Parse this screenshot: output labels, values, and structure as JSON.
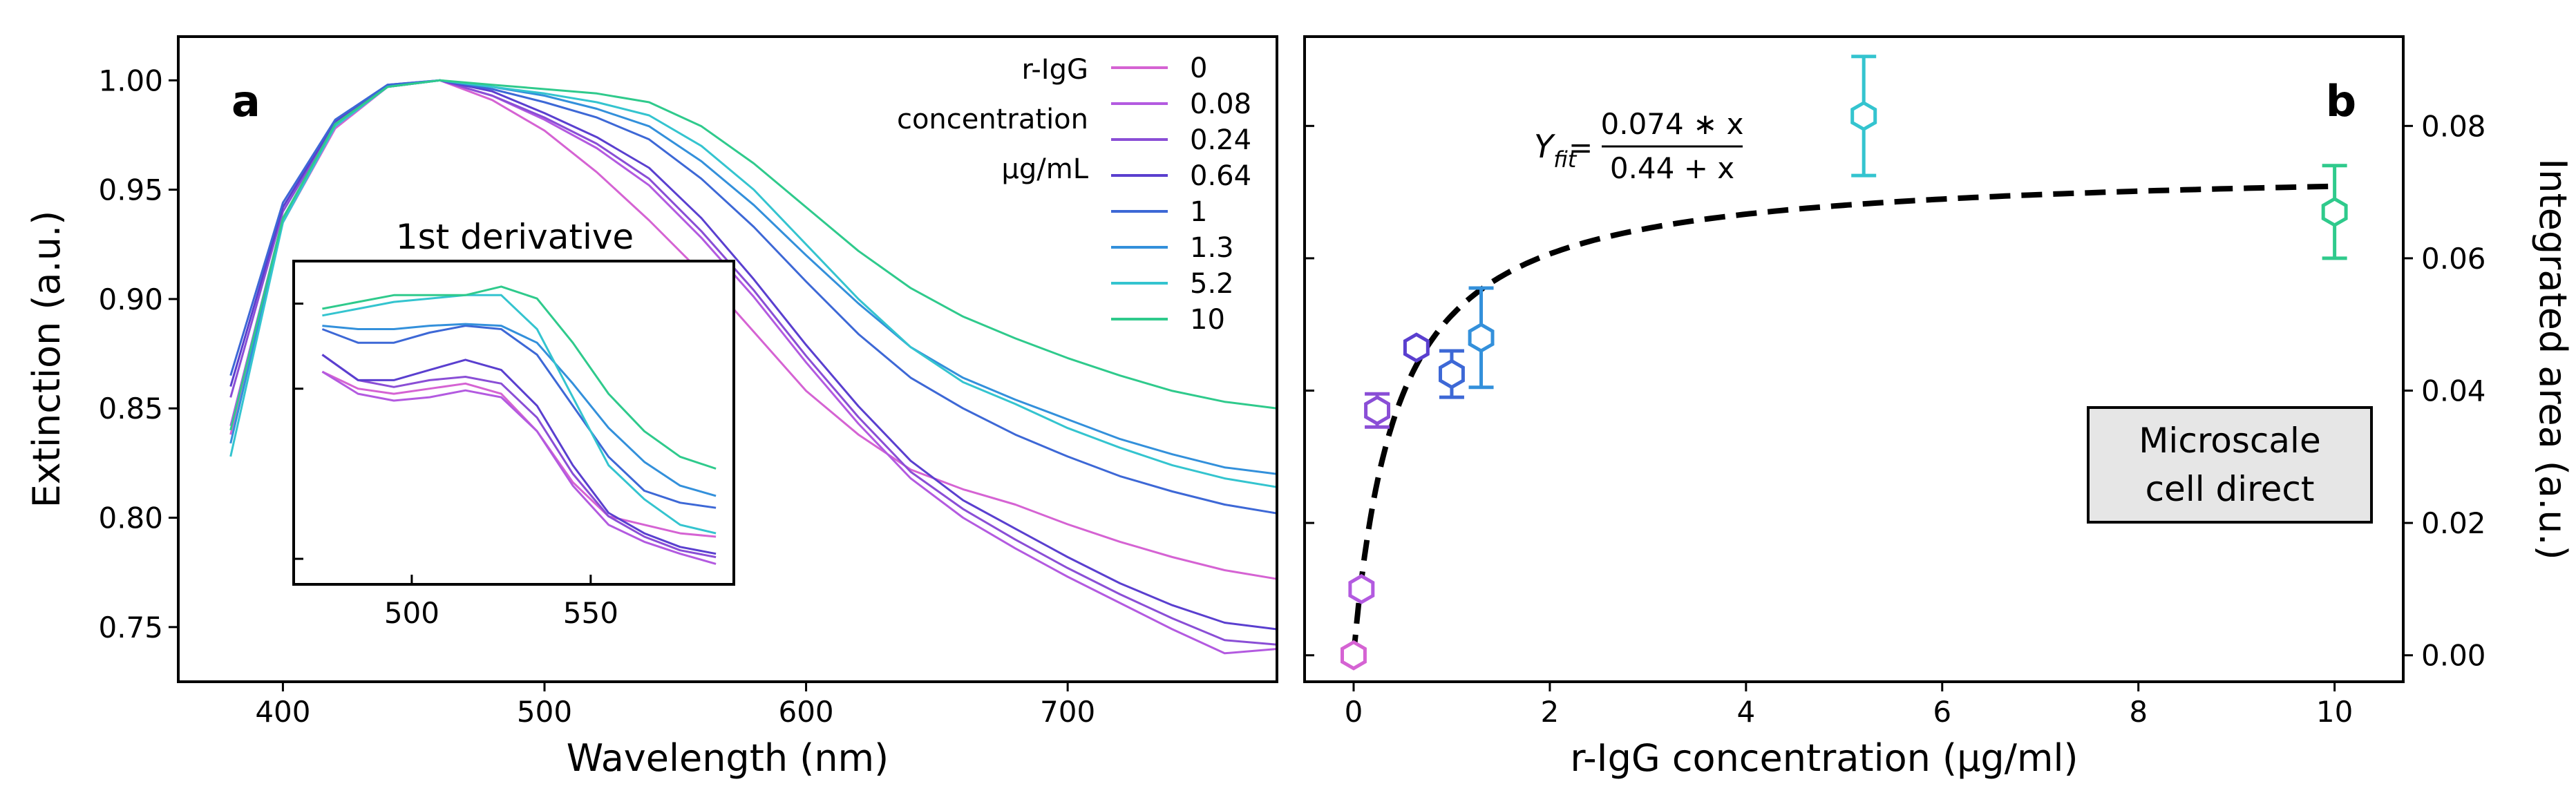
{
  "colors": [
    "#d563d3",
    "#b35ae0",
    "#8a4ed6",
    "#5a3fcf",
    "#3d68d6",
    "#3390db",
    "#34c4cf",
    "#2fca8c"
  ],
  "chart_data": [
    {
      "type": "line",
      "panel_label": "a",
      "xlabel": "Wavelength (nm)",
      "ylabel": "Extinction (a.u.)",
      "xlim": [
        360,
        780
      ],
      "ylim": [
        0.725,
        1.02
      ],
      "x_ticks": [
        400,
        500,
        600,
        700
      ],
      "y_ticks": [
        0.75,
        0.8,
        0.85,
        0.9,
        0.95,
        1.0
      ],
      "y_tick_labels": [
        "0.75",
        "0.80",
        "0.85",
        "0.90",
        "0.95",
        "1.00"
      ],
      "legend_title": [
        "r-IgG",
        "concentration",
        "µg/mL"
      ],
      "legend": [
        "0",
        "0.08",
        "0.24",
        "0.64",
        "1",
        "1.3",
        "5.2",
        "10"
      ],
      "x": [
        380,
        400,
        420,
        440,
        460,
        480,
        500,
        520,
        540,
        560,
        580,
        600,
        620,
        640,
        660,
        680,
        700,
        720,
        740,
        760,
        780
      ],
      "series": [
        {
          "name": "0",
          "values": [
            0.838,
            0.935,
            0.978,
            0.997,
            1.0,
            0.991,
            0.977,
            0.958,
            0.936,
            0.912,
            0.885,
            0.858,
            0.838,
            0.822,
            0.813,
            0.806,
            0.797,
            0.789,
            0.782,
            0.776,
            0.772
          ]
        },
        {
          "name": "0.08",
          "values": [
            0.842,
            0.937,
            0.979,
            0.997,
            1.0,
            0.993,
            0.982,
            0.969,
            0.952,
            0.928,
            0.901,
            0.871,
            0.843,
            0.818,
            0.8,
            0.786,
            0.773,
            0.761,
            0.749,
            0.738,
            0.74
          ]
        },
        {
          "name": "0.24",
          "values": [
            0.855,
            0.94,
            0.98,
            0.997,
            1.0,
            0.993,
            0.983,
            0.971,
            0.955,
            0.931,
            0.904,
            0.874,
            0.846,
            0.821,
            0.804,
            0.79,
            0.777,
            0.765,
            0.754,
            0.744,
            0.742
          ]
        },
        {
          "name": "0.64",
          "values": [
            0.86,
            0.942,
            0.981,
            0.998,
            1.0,
            0.995,
            0.985,
            0.974,
            0.96,
            0.937,
            0.909,
            0.879,
            0.851,
            0.826,
            0.808,
            0.795,
            0.782,
            0.77,
            0.76,
            0.752,
            0.749
          ]
        },
        {
          "name": "1",
          "values": [
            0.865,
            0.944,
            0.982,
            0.998,
            1.0,
            0.996,
            0.99,
            0.983,
            0.973,
            0.955,
            0.933,
            0.908,
            0.884,
            0.864,
            0.85,
            0.838,
            0.828,
            0.819,
            0.812,
            0.806,
            0.802
          ]
        },
        {
          "name": "1.3",
          "values": [
            0.834,
            0.936,
            0.98,
            0.997,
            1.0,
            0.997,
            0.993,
            0.987,
            0.979,
            0.963,
            0.943,
            0.92,
            0.898,
            0.878,
            0.864,
            0.854,
            0.845,
            0.836,
            0.829,
            0.823,
            0.82
          ]
        },
        {
          "name": "5.2",
          "values": [
            0.828,
            0.935,
            0.979,
            0.997,
            1.0,
            0.997,
            0.994,
            0.99,
            0.984,
            0.97,
            0.95,
            0.925,
            0.9,
            0.878,
            0.862,
            0.852,
            0.841,
            0.832,
            0.824,
            0.818,
            0.814
          ]
        },
        {
          "name": "10",
          "values": [
            0.84,
            0.937,
            0.98,
            0.997,
            1.0,
            0.998,
            0.996,
            0.994,
            0.99,
            0.979,
            0.962,
            0.942,
            0.922,
            0.905,
            0.892,
            0.882,
            0.873,
            0.865,
            0.858,
            0.853,
            0.85
          ]
        }
      ],
      "inset": {
        "title": "1st derivative",
        "xlim": [
          467,
          590
        ],
        "x_ticks": [
          500,
          550
        ],
        "ylim": [
          -0.9,
          1.0
        ],
        "x": [
          475,
          485,
          495,
          505,
          515,
          525,
          535,
          545,
          555,
          565,
          575,
          585
        ],
        "series": [
          {
            "name": "0",
            "values": [
              0.35,
              0.25,
              0.22,
              0.25,
              0.28,
              0.22,
              0.0,
              -0.3,
              -0.5,
              -0.55,
              -0.6,
              -0.62
            ]
          },
          {
            "name": "0.08",
            "values": [
              0.35,
              0.22,
              0.18,
              0.2,
              0.24,
              0.2,
              0.0,
              -0.32,
              -0.55,
              -0.65,
              -0.72,
              -0.78
            ]
          },
          {
            "name": "0.24",
            "values": [
              0.45,
              0.3,
              0.26,
              0.3,
              0.32,
              0.28,
              0.08,
              -0.25,
              -0.5,
              -0.62,
              -0.7,
              -0.74
            ]
          },
          {
            "name": "0.64",
            "values": [
              0.45,
              0.3,
              0.3,
              0.36,
              0.42,
              0.36,
              0.15,
              -0.2,
              -0.48,
              -0.6,
              -0.68,
              -0.72
            ]
          },
          {
            "name": "1",
            "values": [
              0.6,
              0.52,
              0.52,
              0.58,
              0.62,
              0.6,
              0.45,
              0.15,
              -0.15,
              -0.35,
              -0.42,
              -0.45
            ]
          },
          {
            "name": "1.3",
            "values": [
              0.62,
              0.6,
              0.6,
              0.62,
              0.63,
              0.62,
              0.52,
              0.28,
              0.02,
              -0.18,
              -0.32,
              -0.38
            ]
          },
          {
            "name": "5.2",
            "values": [
              0.68,
              0.72,
              0.76,
              0.78,
              0.8,
              0.8,
              0.6,
              0.2,
              -0.2,
              -0.4,
              -0.55,
              -0.6
            ]
          },
          {
            "name": "10",
            "values": [
              0.72,
              0.76,
              0.8,
              0.8,
              0.8,
              0.85,
              0.78,
              0.52,
              0.22,
              0.0,
              -0.15,
              -0.22
            ]
          }
        ]
      }
    },
    {
      "type": "scatter",
      "panel_label": "b",
      "xlabel": "r-IgG concentration (µg/ml)",
      "ylabel": "Integrated area (a.u.)",
      "xlim": [
        -0.5,
        10.7
      ],
      "ylim": [
        -0.004,
        0.0935
      ],
      "x_ticks": [
        0,
        2,
        4,
        6,
        8,
        10
      ],
      "y_ticks": [
        0.0,
        0.02,
        0.04,
        0.06,
        0.08
      ],
      "y_tick_labels": [
        "0.00",
        "0.02",
        "0.04",
        "0.06",
        "0.08"
      ],
      "points": [
        {
          "x": 0,
          "y": 0.0,
          "err": 0.0
        },
        {
          "x": 0.08,
          "y": 0.01,
          "err": 0.0
        },
        {
          "x": 0.24,
          "y": 0.037,
          "err": 0.0025
        },
        {
          "x": 0.64,
          "y": 0.0465,
          "err": 0.0
        },
        {
          "x": 1,
          "y": 0.0425,
          "err": 0.0035
        },
        {
          "x": 1.3,
          "y": 0.048,
          "err": 0.0075
        },
        {
          "x": 5.2,
          "y": 0.0815,
          "err": 0.009
        },
        {
          "x": 10,
          "y": 0.067,
          "err": 0.007
        }
      ],
      "fit": {
        "a": 0.074,
        "b": 0.44
      },
      "equation": {
        "lhs": "Y",
        "sub": "fit",
        "eq": "=",
        "numerator": "0.074 ∗ x",
        "denominator": "0.44 + x"
      },
      "box_text": [
        "Microscale",
        "cell direct"
      ]
    }
  ]
}
